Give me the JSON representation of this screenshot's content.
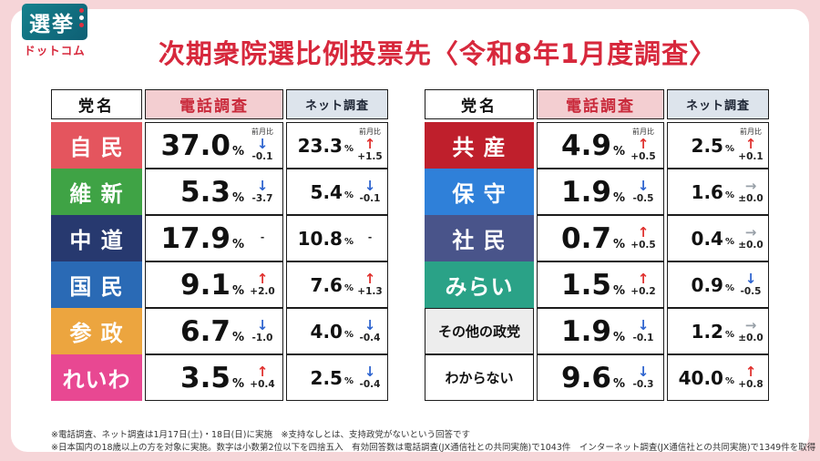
{
  "logo": {
    "top": "選挙",
    "bottom": "ドットコム"
  },
  "title": "次期衆院選比例投票先〈令和8年1月度調査〉",
  "headers": {
    "party": "党名",
    "phone": "電話調査",
    "net": "ネット調査"
  },
  "prev_month_label": "前月比",
  "percent_sign": "%",
  "arrow_glyphs": {
    "up": "↑",
    "down": "↓",
    "flat": "→",
    "none": ""
  },
  "colors": {
    "background_pink": "#f6d5d8",
    "title_red": "#d7283c",
    "up_red": "#e0312e",
    "down_blue": "#2e64cf",
    "flat_gray": "#98a0a8",
    "phone_header_bg": "#f3ced1",
    "net_header_bg": "#dde4ec"
  },
  "tables": [
    {
      "rows": [
        {
          "party": "自 民",
          "bg": "#e4555e",
          "fg": "#ffffff",
          "phone": "37.0",
          "phone_dir": "down",
          "phone_delta": "-0.1",
          "net": "23.3",
          "net_dir": "up",
          "net_delta": "+1.5",
          "prev_label": true
        },
        {
          "party": "維 新",
          "bg": "#3fa345",
          "fg": "#ffffff",
          "phone": "5.3",
          "phone_dir": "down",
          "phone_delta": "-3.7",
          "net": "5.4",
          "net_dir": "down",
          "net_delta": "-0.1"
        },
        {
          "party": "中 道",
          "bg": "#27396f",
          "fg": "#ffffff",
          "phone": "17.9",
          "phone_dir": "none",
          "phone_delta": "-",
          "net": "10.8",
          "net_dir": "none",
          "net_delta": "-"
        },
        {
          "party": "国 民",
          "bg": "#2a6ab5",
          "fg": "#ffffff",
          "phone": "9.1",
          "phone_dir": "up",
          "phone_delta": "+2.0",
          "net": "7.6",
          "net_dir": "up",
          "net_delta": "+1.3"
        },
        {
          "party": "参 政",
          "bg": "#eca53f",
          "fg": "#ffffff",
          "phone": "6.7",
          "phone_dir": "down",
          "phone_delta": "-1.0",
          "net": "4.0",
          "net_dir": "down",
          "net_delta": "-0.4"
        },
        {
          "party": "れいわ",
          "bg": "#e84892",
          "fg": "#ffffff",
          "phone": "3.5",
          "phone_dir": "up",
          "phone_delta": "+0.4",
          "net": "2.5",
          "net_dir": "down",
          "net_delta": "-0.4"
        }
      ]
    },
    {
      "rows": [
        {
          "party": "共 産",
          "bg": "#bf1f2c",
          "fg": "#ffffff",
          "phone": "4.9",
          "phone_dir": "up",
          "phone_delta": "+0.5",
          "net": "2.5",
          "net_dir": "up",
          "net_delta": "+0.1",
          "prev_label": true
        },
        {
          "party": "保 守",
          "bg": "#2f80d9",
          "fg": "#ffffff",
          "phone": "1.9",
          "phone_dir": "down",
          "phone_delta": "-0.5",
          "net": "1.6",
          "net_dir": "flat",
          "net_delta": "±0.0"
        },
        {
          "party": "社 民",
          "bg": "#49548a",
          "fg": "#ffffff",
          "phone": "0.7",
          "phone_dir": "up",
          "phone_delta": "+0.5",
          "net": "0.4",
          "net_dir": "flat",
          "net_delta": "±0.0"
        },
        {
          "party": "みらい",
          "bg": "#2aa287",
          "fg": "#ffffff",
          "phone": "1.5",
          "phone_dir": "up",
          "phone_delta": "+0.2",
          "net": "0.9",
          "net_dir": "down",
          "net_delta": "-0.5"
        },
        {
          "party": "その他の政党",
          "bg": "#ededed",
          "fg": "#111111",
          "small": true,
          "border": "#1c1c1c",
          "phone": "1.9",
          "phone_dir": "down",
          "phone_delta": "-0.1",
          "net": "1.2",
          "net_dir": "flat",
          "net_delta": "±0.0"
        },
        {
          "party": "わからない",
          "bg": "#ffffff",
          "fg": "#111111",
          "small": true,
          "border": "#1c1c1c",
          "phone": "9.6",
          "phone_dir": "down",
          "phone_delta": "-0.3",
          "net": "40.0",
          "net_dir": "up",
          "net_delta": "+0.8"
        }
      ]
    }
  ],
  "footnotes": [
    "※電話調査、ネット調査は1月17日(土)・18日(日)に実施　※支持なしとは、支持政党がないという回答です",
    "※日本国内の18歳以上の方を対象に実施。数字は小数第2位以下を四捨五入　有効回答数は電話調査(JX通信社との共同実施)で1043件　インターネット調査(JX通信社との共同実施)で1349件を取得"
  ],
  "chart_data": {
    "type": "table",
    "title": "次期衆院選比例投票先〈令和8年1月度調査〉",
    "columns": [
      "党名",
      "電話調査(%)",
      "電話調査 前月比",
      "ネット調査(%)",
      "ネット調査 前月比"
    ],
    "rows": [
      [
        "自民",
        37.0,
        -0.1,
        23.3,
        1.5
      ],
      [
        "維新",
        5.3,
        -3.7,
        5.4,
        -0.1
      ],
      [
        "中道",
        17.9,
        null,
        10.8,
        null
      ],
      [
        "国民",
        9.1,
        2.0,
        7.6,
        1.3
      ],
      [
        "参政",
        6.7,
        -1.0,
        4.0,
        -0.4
      ],
      [
        "れいわ",
        3.5,
        0.4,
        2.5,
        -0.4
      ],
      [
        "共産",
        4.9,
        0.5,
        2.5,
        0.1
      ],
      [
        "保守",
        1.9,
        -0.5,
        1.6,
        0.0
      ],
      [
        "社民",
        0.7,
        0.5,
        0.4,
        0.0
      ],
      [
        "みらい",
        1.5,
        0.2,
        0.9,
        -0.5
      ],
      [
        "その他の政党",
        1.9,
        -0.1,
        1.2,
        0.0
      ],
      [
        "わからない",
        9.6,
        -0.3,
        40.0,
        0.8
      ]
    ]
  }
}
